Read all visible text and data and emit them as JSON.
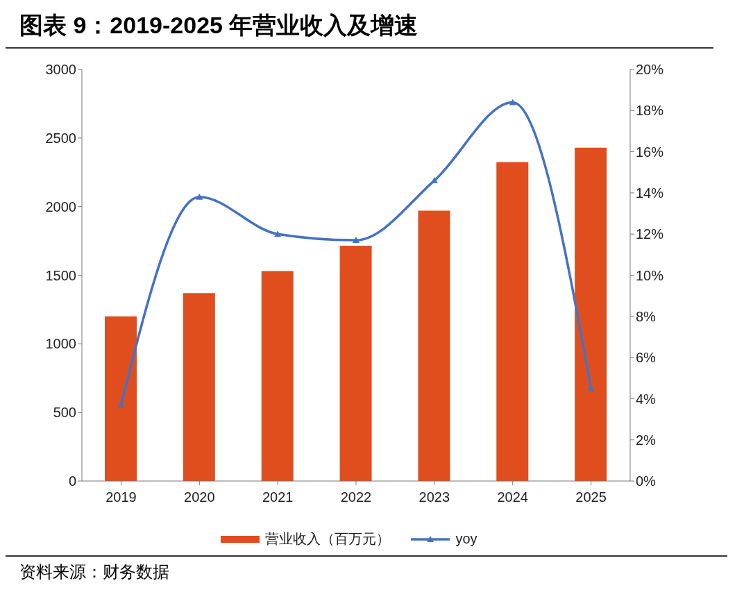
{
  "chart_data": {
    "type": "bar",
    "title": "图表 9：2019-2025 年营业收入及增速",
    "categories": [
      "2019",
      "2020",
      "2021",
      "2022",
      "2023",
      "2024",
      "2025"
    ],
    "series": [
      {
        "name": "营业收入（百万元）",
        "color": "#e04e1e",
        "values": [
          1200,
          1370,
          1530,
          1715,
          1970,
          2325,
          2430
        ]
      },
      {
        "name": "yoy",
        "type": "line",
        "axis": "y2",
        "color": "#4472c4",
        "marker": "triangle",
        "values": [
          3.7,
          13.8,
          12.0,
          11.7,
          14.6,
          18.4,
          4.5
        ]
      }
    ],
    "ylim": [
      0,
      3000
    ],
    "yticks": [
      0,
      500,
      1000,
      1500,
      2000,
      2500,
      3000
    ],
    "y2lim": [
      0,
      20
    ],
    "y2ticks": [
      {
        "value": 0,
        "label": "0%"
      },
      {
        "value": 2,
        "label": "2%"
      },
      {
        "value": 4,
        "label": "4%"
      },
      {
        "value": 6,
        "label": "6%"
      },
      {
        "value": 8,
        "label": "8%"
      },
      {
        "value": 10,
        "label": "10%"
      },
      {
        "value": 12,
        "label": "12%"
      },
      {
        "value": 14,
        "label": "14%"
      },
      {
        "value": 16,
        "label": "16%"
      },
      {
        "value": 18,
        "label": "18%"
      },
      {
        "value": 20,
        "label": "20%"
      }
    ],
    "grid": false,
    "legend": "bottom",
    "annotations": [
      "资料来源：财务数据"
    ]
  }
}
